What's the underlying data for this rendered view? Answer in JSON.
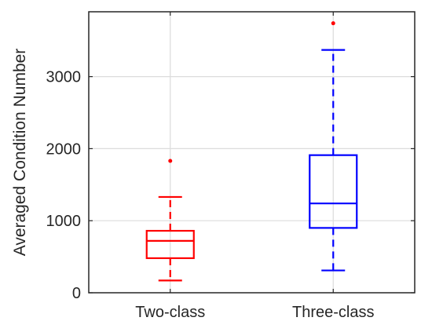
{
  "chart_data": {
    "type": "box",
    "title": "",
    "xlabel": "",
    "ylabel": "Averaged Condition Number",
    "categories": [
      "Two-class",
      "Three-class"
    ],
    "ylim": [
      0,
      3900
    ],
    "yticks": [
      0,
      1000,
      2000,
      3000
    ],
    "ytick_labels": [
      "0",
      "1000",
      "2000",
      "3000"
    ],
    "grid": true,
    "series": [
      {
        "category": "Two-class",
        "color": "#ff0000",
        "whisker_low": 170,
        "q1": 480,
        "median": 720,
        "q3": 860,
        "whisker_high": 1330,
        "outliers": [
          1830
        ]
      },
      {
        "category": "Three-class",
        "color": "#0000ff",
        "whisker_low": 310,
        "q1": 900,
        "median": 1240,
        "q3": 1910,
        "whisker_high": 3370,
        "outliers": [
          3740
        ]
      }
    ]
  }
}
